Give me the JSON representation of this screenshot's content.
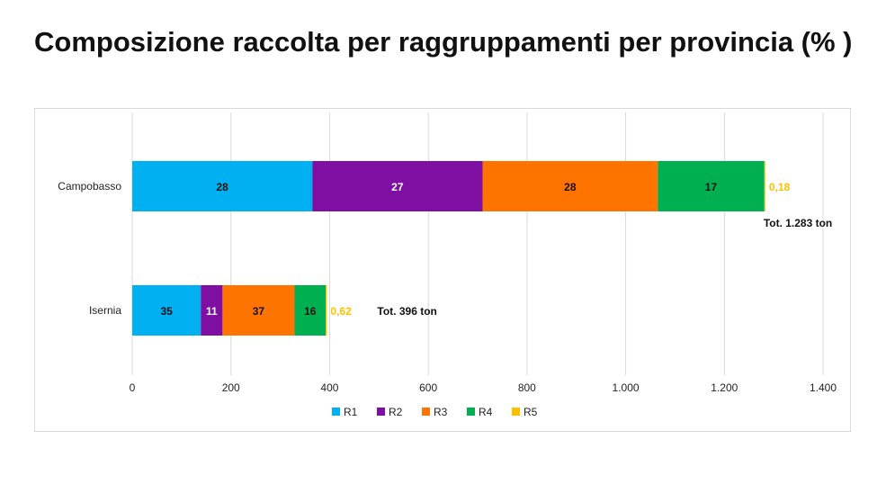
{
  "title": "Composizione raccolta per raggruppamenti per provincia (% )",
  "chart_data": {
    "type": "bar",
    "orientation": "horizontal",
    "stacked": true,
    "title": "Composizione raccolta per raggruppamenti per provincia (% )",
    "xlabel": "",
    "ylabel": "",
    "xlim": [
      0,
      1400
    ],
    "xticks": [
      0,
      200,
      400,
      600,
      800,
      1000,
      1200,
      1400
    ],
    "xtick_labels": [
      "0",
      "200",
      "400",
      "600",
      "800",
      "1.000",
      "1.200",
      "1.400"
    ],
    "grid": true,
    "legend_position": "bottom",
    "categories": [
      "Campobasso",
      "Isernia"
    ],
    "series": [
      {
        "name": "R1",
        "color": "#00b0f0",
        "values": [
          365,
          139
        ],
        "labels": [
          "28",
          "35"
        ],
        "label_color": "#111111"
      },
      {
        "name": "R2",
        "color": "#7f0fa3",
        "values": [
          345,
          44
        ],
        "labels": [
          "27",
          "11"
        ],
        "label_color": "#ffffff"
      },
      {
        "name": "R3",
        "color": "#ff7300",
        "values": [
          355,
          146
        ],
        "labels": [
          "28",
          "37"
        ],
        "label_color": "#111111"
      },
      {
        "name": "R4",
        "color": "#00b050",
        "values": [
          216,
          63
        ],
        "labels": [
          "17",
          "16"
        ],
        "label_color": "#111111"
      },
      {
        "name": "R5",
        "color": "#ffc000",
        "values": [
          2,
          2.5
        ],
        "labels": [
          "0,18",
          "0,62"
        ],
        "label_color": "#ffc000"
      }
    ],
    "totals": [
      "Tot. 1.283  ton",
      "Tot. 396  ton"
    ]
  }
}
